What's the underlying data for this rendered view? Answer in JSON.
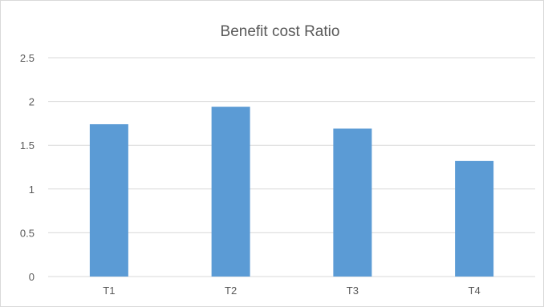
{
  "chart_data": {
    "type": "bar",
    "title": "Benefit cost Ratio",
    "categories": [
      "T1",
      "T2",
      "T3",
      "T4"
    ],
    "values": [
      1.74,
      1.94,
      1.69,
      1.32
    ],
    "ylim": [
      0,
      2.5
    ],
    "yticks": [
      "0",
      "0.5",
      "1",
      "1.5",
      "2",
      "2.5"
    ],
    "ytick_values": [
      0,
      0.5,
      1,
      1.5,
      2,
      2.5
    ],
    "grid": true,
    "legend": "none",
    "bar_color": "#5b9bd5",
    "grid_color": "#d9d9d9",
    "text_color": "#595959"
  }
}
